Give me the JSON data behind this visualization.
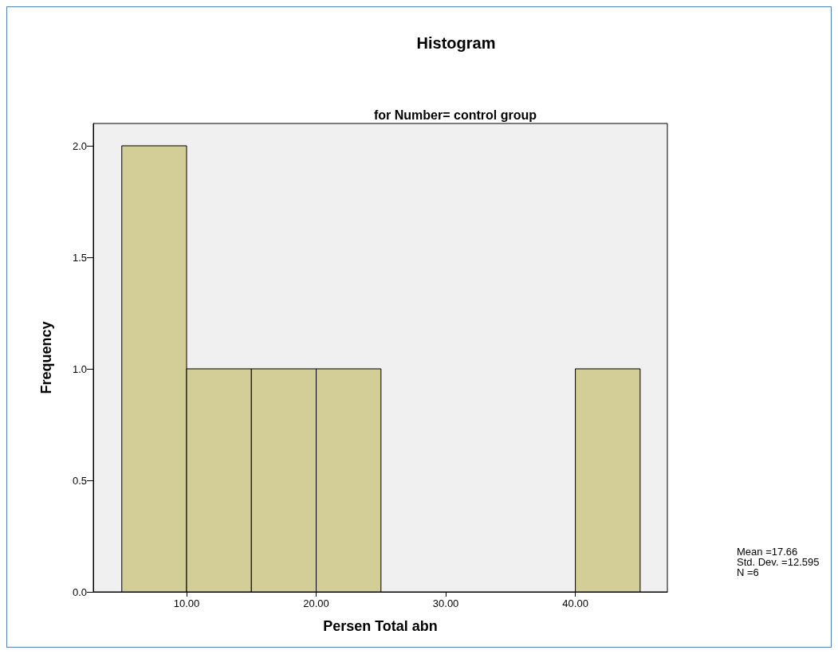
{
  "chart_data": {
    "type": "histogram",
    "title": "Histogram",
    "subtitle": "for Number= control group",
    "xlabel": "Persen Total abn",
    "ylabel": "Frequency",
    "bins": [
      5,
      10,
      15,
      20,
      25,
      30,
      35,
      40,
      45
    ],
    "values": [
      2,
      1,
      1,
      1,
      0,
      0,
      0,
      1
    ],
    "color": "#d3ce97",
    "xlim": [
      2.8,
      47.1
    ],
    "xticks": [
      {
        "value": 10,
        "label": "10.00"
      },
      {
        "value": 20,
        "label": "20.00"
      },
      {
        "value": 30,
        "label": "30.00"
      },
      {
        "value": 40,
        "label": "40.00"
      }
    ],
    "ylim": [
      0,
      2.1
    ],
    "yticks": [
      {
        "value": 0,
        "label": "0.0"
      },
      {
        "value": 0.5,
        "label": "0.5"
      },
      {
        "value": 1,
        "label": "1.0"
      },
      {
        "value": 1.5,
        "label": "1.5"
      },
      {
        "value": 2,
        "label": "2.0"
      }
    ],
    "grid": false,
    "annotations": [
      "Mean =17.66",
      "Std. Dev. =12.595",
      "N =6"
    ]
  }
}
